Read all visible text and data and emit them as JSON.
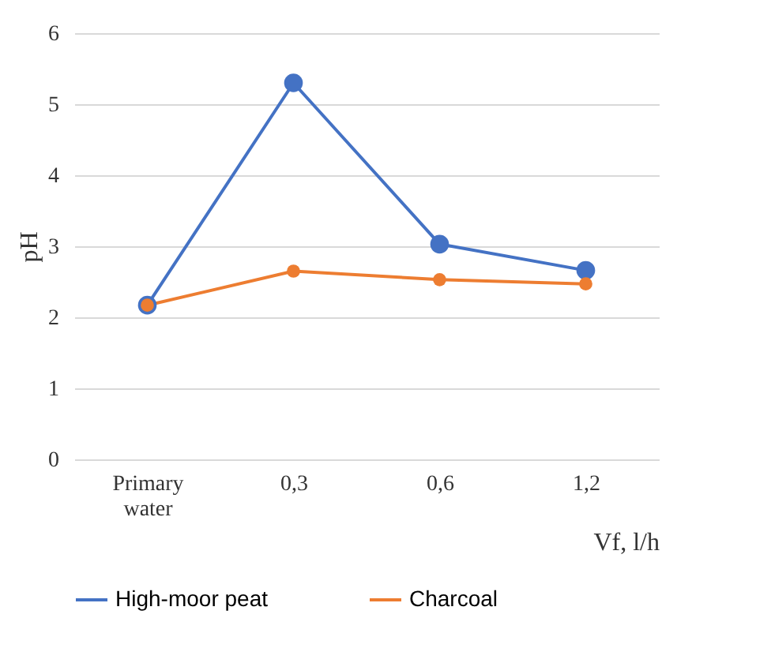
{
  "chart_data": {
    "type": "line",
    "categories": [
      "Primary water",
      "0,3",
      "0,6",
      "1,2"
    ],
    "xlabel": "Vf, l/h",
    "ylabel": "pH",
    "ylim": [
      0,
      6
    ],
    "yticks": [
      0,
      1,
      2,
      3,
      4,
      5,
      6
    ],
    "grid": "y",
    "legend": "bottom",
    "marker": "circle",
    "series": [
      {
        "name": "High-moor peat",
        "color": "#4472c4",
        "values": [
          2.17,
          5.3,
          3.03,
          2.66
        ]
      },
      {
        "name": "Charcoal",
        "color": "#ed7d31",
        "values": [
          2.17,
          2.65,
          2.53,
          2.47
        ]
      }
    ]
  }
}
